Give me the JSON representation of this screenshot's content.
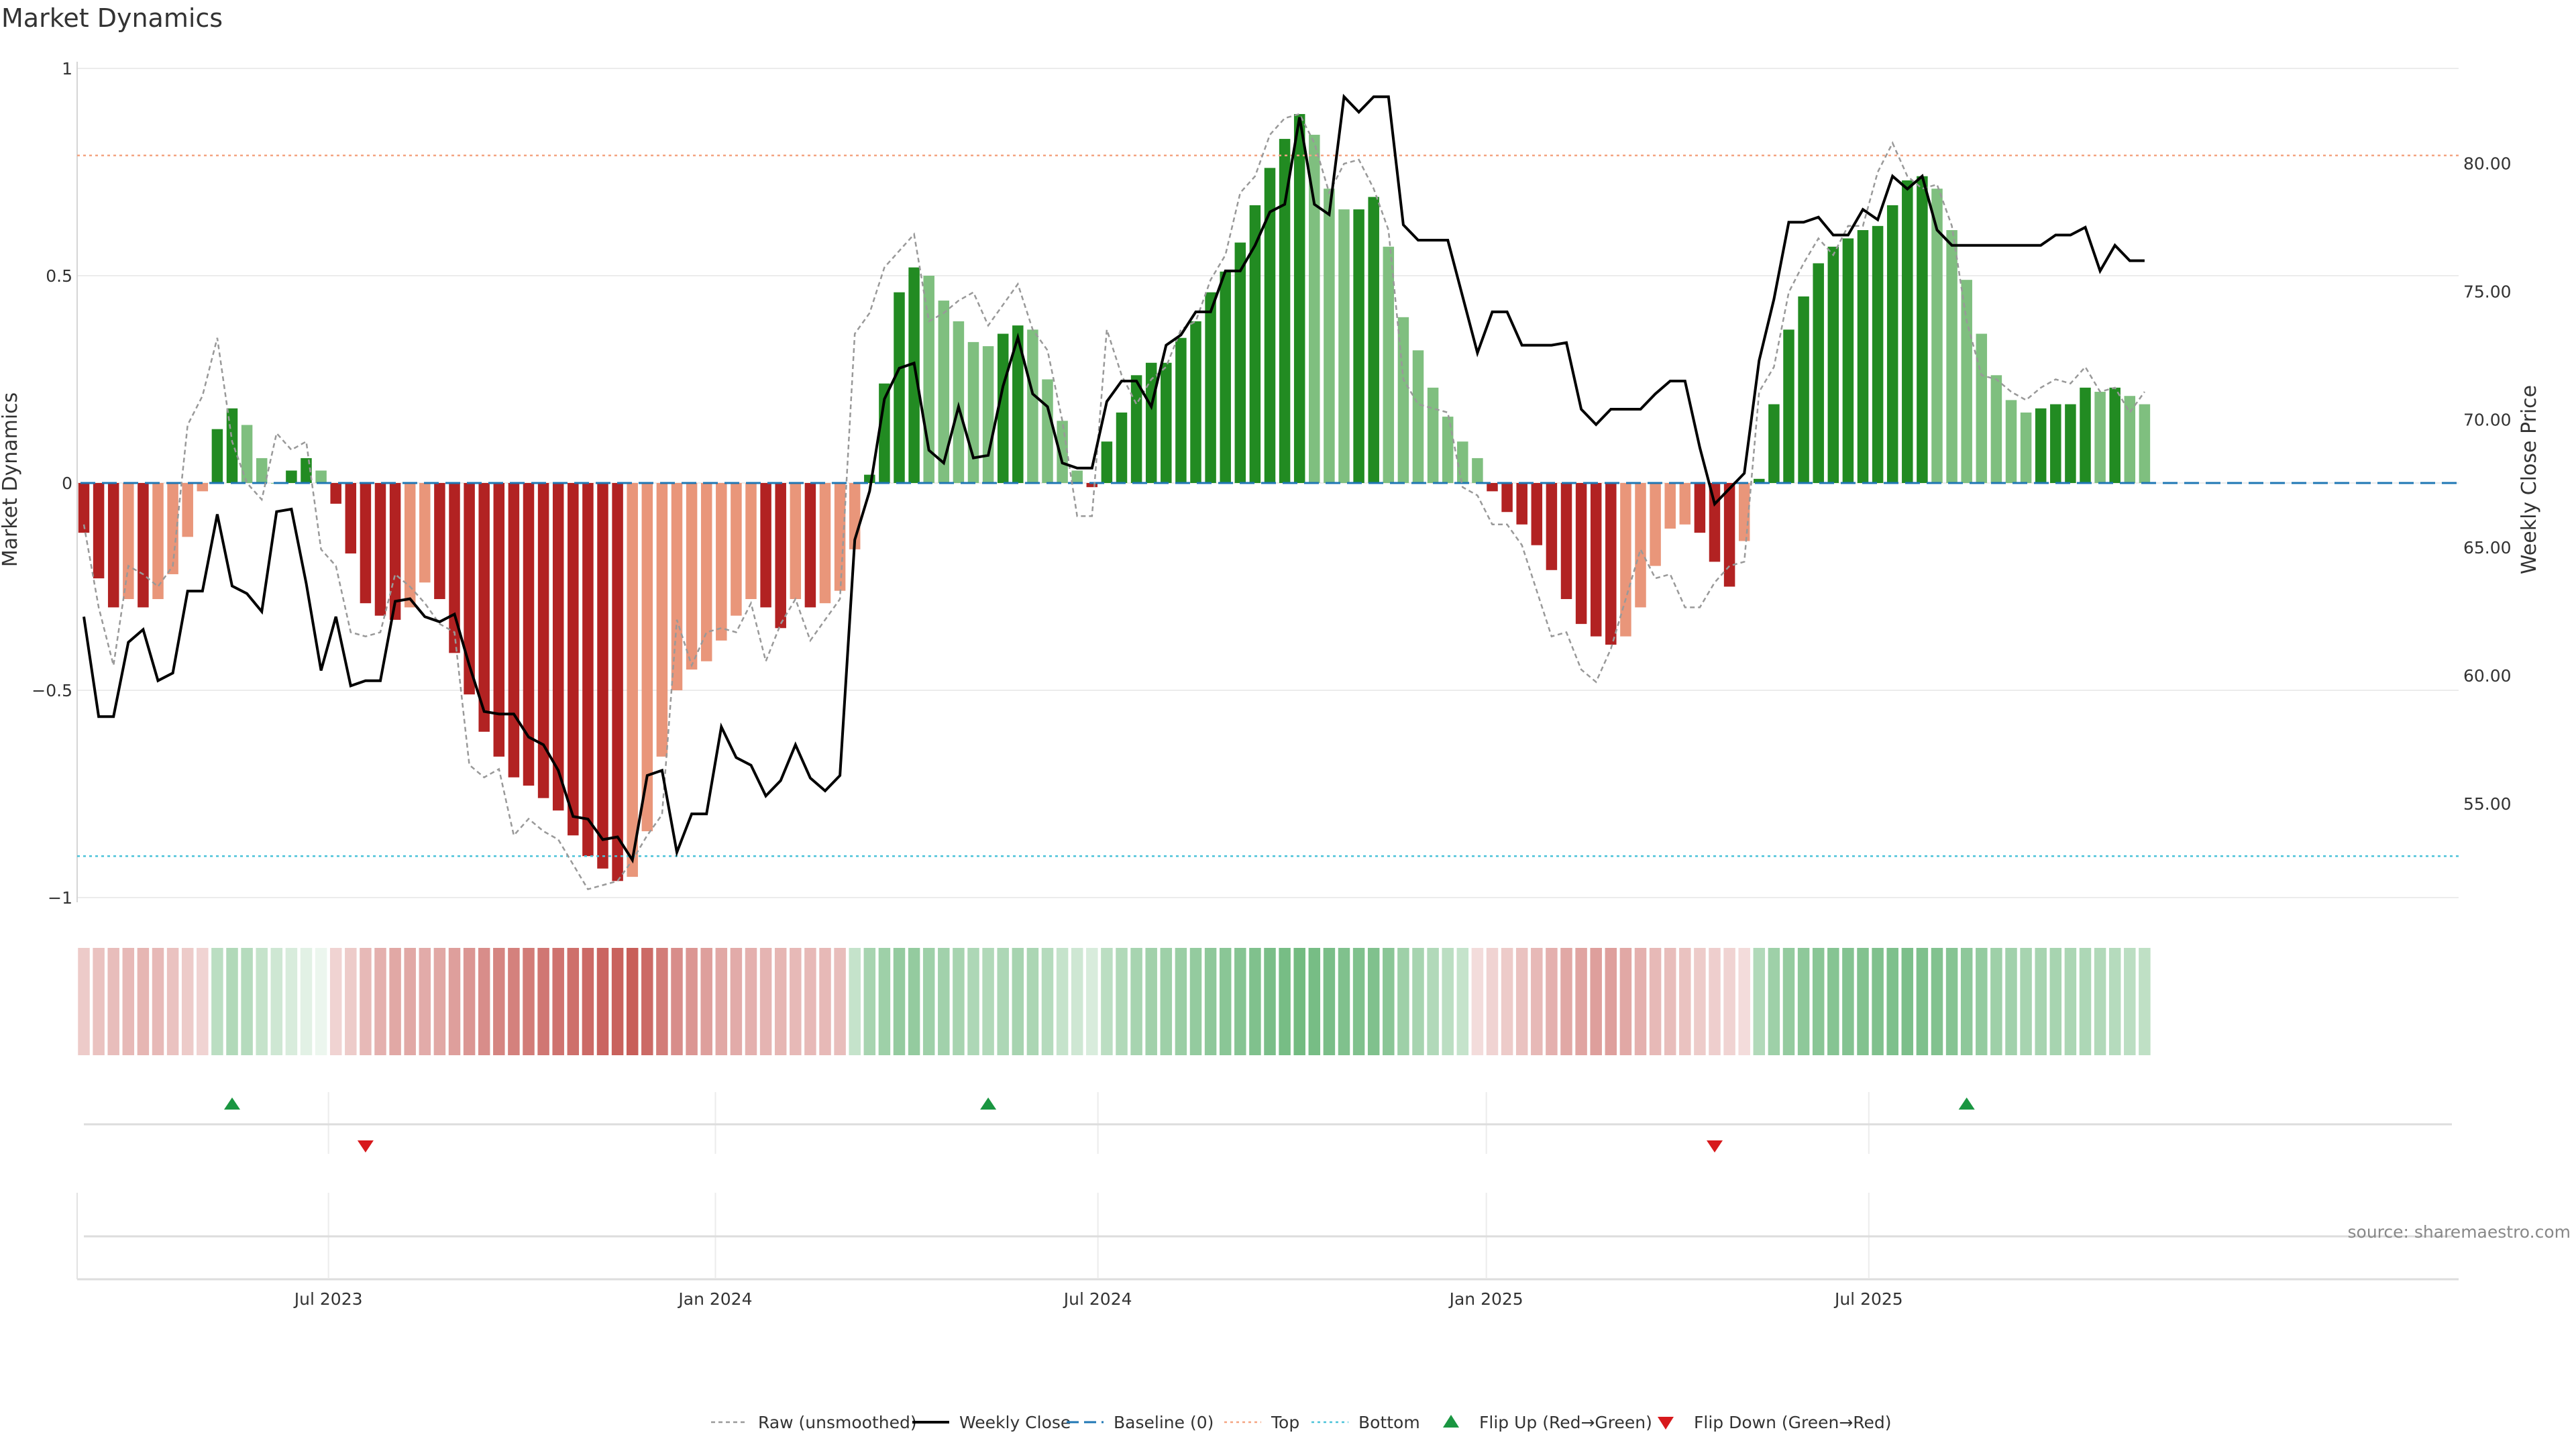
{
  "chart_data": {
    "type": "bar",
    "title": "Market Dynamics",
    "ylabel_left": "Market Dynamics",
    "ylabel_right": "Weekly Close Price",
    "source_note": "source: sharemaestro.com",
    "left_ylim": [
      -1.0,
      1.0
    ],
    "left_ticks": [
      {
        "value": 1,
        "label": "1"
      },
      {
        "value": 0.5,
        "label": "0.5"
      },
      {
        "value": 0,
        "label": "0"
      },
      {
        "value": -0.5,
        "label": "−0.5"
      },
      {
        "value": -1,
        "label": "−1"
      }
    ],
    "right_ylim": [
      51.5,
      84.5
    ],
    "right_ticks": [
      {
        "value": 80,
        "label": "80.00"
      },
      {
        "value": 75,
        "label": "75.00"
      },
      {
        "value": 70,
        "label": "70.00"
      },
      {
        "value": 65,
        "label": "65.00"
      },
      {
        "value": 60,
        "label": "60.00"
      },
      {
        "value": 55,
        "label": "55.00"
      }
    ],
    "x_ticks": [
      {
        "label": "Jul 2023",
        "index": 16.5
      },
      {
        "label": "Jan 2024",
        "index": 42.6
      },
      {
        "label": "Jul 2024",
        "index": 68.4
      },
      {
        "label": "Jan 2025",
        "index": 94.6
      },
      {
        "label": "Jul 2025",
        "index": 120.4
      }
    ],
    "top_level": 0.79,
    "bottom_level": -0.9,
    "baseline": 0,
    "colors": {
      "dark_green": "#228b22",
      "light_green": "#7fbf7f",
      "dark_red": "#b22222",
      "light_red": "#e9967a",
      "raw_line": "#999999",
      "close_line": "#000000",
      "baseline": "#1f77b4",
      "top": "#f4a582",
      "bottom": "#4cc3d9",
      "flip_up": "#1a9641",
      "flip_down": "#d7191c"
    },
    "bars": [
      -0.12,
      -0.23,
      -0.3,
      -0.28,
      -0.3,
      -0.28,
      -0.22,
      -0.13,
      -0.02,
      0.13,
      0.18,
      0.14,
      0.06,
      0.0,
      0.03,
      0.06,
      0.03,
      -0.05,
      -0.17,
      -0.29,
      -0.32,
      -0.33,
      -0.3,
      -0.24,
      -0.28,
      -0.41,
      -0.51,
      -0.6,
      -0.66,
      -0.71,
      -0.73,
      -0.76,
      -0.79,
      -0.85,
      -0.9,
      -0.93,
      -0.96,
      -0.95,
      -0.84,
      -0.66,
      -0.5,
      -0.45,
      -0.43,
      -0.38,
      -0.32,
      -0.28,
      -0.3,
      -0.35,
      -0.28,
      -0.3,
      -0.29,
      -0.26,
      -0.16,
      0.02,
      0.24,
      0.46,
      0.52,
      0.5,
      0.44,
      0.39,
      0.34,
      0.33,
      0.36,
      0.38,
      0.37,
      0.25,
      0.15,
      0.03,
      -0.01,
      0.1,
      0.17,
      0.26,
      0.29,
      0.29,
      0.35,
      0.39,
      0.46,
      0.51,
      0.58,
      0.67,
      0.76,
      0.83,
      0.89,
      0.84,
      0.71,
      0.66,
      0.66,
      0.69,
      0.57,
      0.4,
      0.32,
      0.23,
      0.16,
      0.1,
      0.06,
      -0.02,
      -0.07,
      -0.1,
      -0.15,
      -0.21,
      -0.28,
      -0.34,
      -0.37,
      -0.39,
      -0.37,
      -0.3,
      -0.2,
      -0.11,
      -0.1,
      -0.12,
      -0.19,
      -0.25,
      -0.14,
      0.01,
      0.19,
      0.37,
      0.45,
      0.53,
      0.57,
      0.59,
      0.61,
      0.62,
      0.67,
      0.73,
      0.74,
      0.71,
      0.61,
      0.49,
      0.36,
      0.26,
      0.2,
      0.17,
      0.18,
      0.19,
      0.19,
      0.23,
      0.22,
      0.23,
      0.21,
      0.19
    ],
    "raw": [
      -0.1,
      -0.3,
      -0.44,
      -0.2,
      -0.22,
      -0.25,
      -0.2,
      0.14,
      0.21,
      0.35,
      0.1,
      0.0,
      -0.04,
      0.12,
      0.08,
      0.1,
      -0.16,
      -0.2,
      -0.36,
      -0.37,
      -0.36,
      -0.22,
      -0.25,
      -0.29,
      -0.34,
      -0.36,
      -0.68,
      -0.71,
      -0.69,
      -0.85,
      -0.81,
      -0.84,
      -0.86,
      -0.92,
      -0.98,
      -0.97,
      -0.96,
      -0.91,
      -0.85,
      -0.8,
      -0.33,
      -0.44,
      -0.36,
      -0.35,
      -0.36,
      -0.29,
      -0.43,
      -0.34,
      -0.28,
      -0.38,
      -0.33,
      -0.28,
      0.36,
      0.41,
      0.52,
      0.56,
      0.6,
      0.39,
      0.41,
      0.44,
      0.46,
      0.38,
      0.43,
      0.48,
      0.37,
      0.32,
      0.15,
      -0.08,
      -0.08,
      0.37,
      0.26,
      0.19,
      0.25,
      0.28,
      0.37,
      0.39,
      0.49,
      0.55,
      0.7,
      0.74,
      0.84,
      0.88,
      0.89,
      0.82,
      0.7,
      0.77,
      0.78,
      0.71,
      0.61,
      0.25,
      0.19,
      0.18,
      0.17,
      -0.01,
      -0.03,
      -0.1,
      -0.1,
      -0.15,
      -0.26,
      -0.37,
      -0.36,
      -0.45,
      -0.48,
      -0.4,
      -0.28,
      -0.16,
      -0.23,
      -0.22,
      -0.3,
      -0.3,
      -0.24,
      -0.2,
      -0.19,
      0.22,
      0.28,
      0.46,
      0.53,
      0.59,
      0.55,
      0.62,
      0.62,
      0.75,
      0.82,
      0.74,
      0.71,
      0.72,
      0.62,
      0.39,
      0.26,
      0.25,
      0.22,
      0.2,
      0.23,
      0.25,
      0.24,
      0.28,
      0.22,
      0.23,
      0.17,
      0.22
    ],
    "close": [
      62.3,
      58.4,
      58.4,
      61.3,
      61.8,
      59.8,
      60.1,
      63.3,
      63.3,
      66.3,
      63.5,
      63.2,
      62.5,
      66.4,
      66.5,
      63.6,
      60.2,
      62.3,
      59.6,
      59.8,
      59.8,
      62.9,
      63.0,
      62.3,
      62.1,
      62.4,
      60.4,
      58.6,
      58.5,
      58.5,
      57.6,
      57.3,
      56.3,
      54.5,
      54.4,
      53.6,
      53.7,
      52.8,
      56.1,
      56.3,
      53.1,
      54.6,
      54.6,
      58.0,
      56.8,
      56.5,
      55.3,
      55.9,
      57.3,
      56.0,
      55.5,
      56.1,
      65.3,
      67.2,
      70.8,
      72.0,
      72.2,
      68.8,
      68.3,
      70.5,
      68.5,
      68.6,
      71.3,
      73.2,
      71.0,
      70.5,
      68.3,
      68.1,
      68.1,
      70.7,
      71.5,
      71.5,
      70.5,
      72.9,
      73.3,
      74.2,
      74.2,
      75.8,
      75.8,
      76.8,
      78.1,
      78.4,
      81.8,
      78.4,
      78.0,
      82.6,
      82.0,
      82.6,
      82.6,
      77.6,
      77.0,
      77.0,
      77.0,
      74.8,
      72.6,
      74.2,
      74.2,
      72.9,
      72.9,
      72.9,
      73.0,
      70.4,
      69.8,
      70.4,
      70.4,
      70.4,
      71.0,
      71.5,
      71.5,
      68.9,
      66.7,
      67.3,
      67.9,
      72.3,
      74.7,
      77.7,
      77.7,
      77.9,
      77.2,
      77.2,
      78.2,
      77.8,
      79.5,
      79.0,
      79.5,
      77.4,
      76.8,
      76.8,
      76.8,
      76.8,
      76.8,
      76.8,
      76.8,
      77.2,
      77.2,
      77.5,
      75.8,
      76.8,
      76.2,
      76.2
    ],
    "heat_strip": [
      -0.3,
      -0.35,
      -0.38,
      -0.4,
      -0.42,
      -0.4,
      -0.35,
      -0.3,
      -0.25,
      0.35,
      0.4,
      0.38,
      0.3,
      0.25,
      0.2,
      0.15,
      0.1,
      -0.25,
      -0.3,
      -0.4,
      -0.45,
      -0.5,
      -0.5,
      -0.48,
      -0.5,
      -0.55,
      -0.6,
      -0.65,
      -0.7,
      -0.72,
      -0.75,
      -0.78,
      -0.8,
      -0.82,
      -0.85,
      -0.88,
      -0.9,
      -0.92,
      -0.85,
      -0.75,
      -0.65,
      -0.6,
      -0.55,
      -0.5,
      -0.48,
      -0.45,
      -0.43,
      -0.42,
      -0.4,
      -0.4,
      -0.4,
      -0.38,
      0.3,
      0.45,
      0.5,
      0.55,
      0.55,
      0.5,
      0.48,
      0.45,
      0.42,
      0.4,
      0.42,
      0.45,
      0.43,
      0.38,
      0.3,
      0.25,
      0.2,
      0.35,
      0.4,
      0.45,
      0.48,
      0.5,
      0.52,
      0.55,
      0.58,
      0.6,
      0.62,
      0.65,
      0.68,
      0.7,
      0.72,
      0.7,
      0.68,
      0.65,
      0.65,
      0.65,
      0.6,
      0.5,
      0.45,
      0.4,
      0.35,
      0.3,
      -0.2,
      -0.25,
      -0.3,
      -0.35,
      -0.4,
      -0.45,
      -0.5,
      -0.52,
      -0.55,
      -0.55,
      -0.5,
      -0.45,
      -0.4,
      -0.38,
      -0.35,
      -0.3,
      -0.28,
      -0.25,
      -0.2,
      0.4,
      0.5,
      0.55,
      0.58,
      0.6,
      0.62,
      0.63,
      0.64,
      0.65,
      0.66,
      0.67,
      0.66,
      0.64,
      0.62,
      0.58,
      0.55,
      0.5,
      0.48,
      0.45,
      0.45,
      0.45,
      0.43,
      0.42,
      0.4,
      0.38,
      0.35,
      0.33
    ],
    "flip_up": [
      10,
      61,
      127
    ],
    "flip_down": [
      19,
      110
    ],
    "legend": [
      {
        "label": "Raw (unsmoothed)",
        "style": "raw"
      },
      {
        "label": "Weekly Close",
        "style": "close"
      },
      {
        "label": "Baseline (0)",
        "style": "baseline"
      },
      {
        "label": "Top",
        "style": "top"
      },
      {
        "label": "Bottom",
        "style": "bottom"
      },
      {
        "label": "Flip Up (Red→Green)",
        "style": "flip_up"
      },
      {
        "label": "Flip Down (Green→Red)",
        "style": "flip_down"
      }
    ]
  }
}
